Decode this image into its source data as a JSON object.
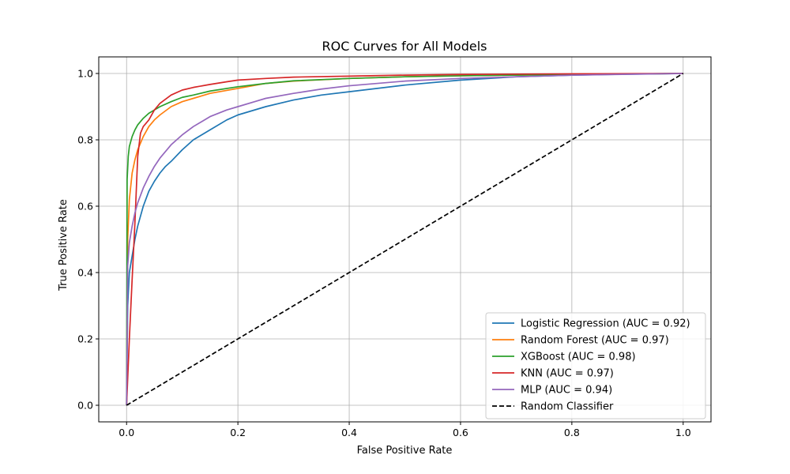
{
  "chart_data": {
    "type": "line",
    "title": "ROC Curves for All Models",
    "xlabel": "False Positive Rate",
    "ylabel": "True Positive Rate",
    "xlim": [
      -0.05,
      1.05
    ],
    "ylim": [
      -0.05,
      1.05
    ],
    "xticks": [
      "0.0",
      "0.2",
      "0.4",
      "0.6",
      "0.8",
      "1.0"
    ],
    "yticks": [
      "0.0",
      "0.2",
      "0.4",
      "0.6",
      "0.8",
      "1.0"
    ],
    "grid": true,
    "legend_position": "lower-right",
    "series": [
      {
        "name": "Logistic Regression (AUC = 0.92)",
        "color": "#1f77b4",
        "dash": "solid",
        "x": [
          0,
          0.002,
          0.005,
          0.01,
          0.015,
          0.02,
          0.03,
          0.04,
          0.05,
          0.06,
          0.07,
          0.08,
          0.1,
          0.12,
          0.15,
          0.18,
          0.2,
          0.25,
          0.3,
          0.35,
          0.4,
          0.5,
          0.6,
          0.7,
          0.8,
          0.9,
          1.0
        ],
        "y": [
          0,
          0.3,
          0.4,
          0.45,
          0.5,
          0.54,
          0.6,
          0.645,
          0.675,
          0.7,
          0.72,
          0.735,
          0.77,
          0.8,
          0.83,
          0.86,
          0.875,
          0.9,
          0.92,
          0.935,
          0.945,
          0.965,
          0.98,
          0.99,
          0.995,
          0.998,
          1.0
        ]
      },
      {
        "name": "Random Forest (AUC = 0.97)",
        "color": "#ff7f0e",
        "dash": "solid",
        "x": [
          0,
          0.002,
          0.005,
          0.01,
          0.015,
          0.02,
          0.03,
          0.04,
          0.05,
          0.06,
          0.08,
          0.1,
          0.12,
          0.15,
          0.2,
          0.25,
          0.3,
          0.4,
          0.5,
          0.6,
          0.8,
          1.0
        ],
        "y": [
          0,
          0.5,
          0.62,
          0.7,
          0.74,
          0.77,
          0.81,
          0.84,
          0.86,
          0.875,
          0.9,
          0.915,
          0.925,
          0.94,
          0.955,
          0.97,
          0.977,
          0.985,
          0.99,
          0.993,
          0.997,
          1.0
        ]
      },
      {
        "name": "XGBoost (AUC = 0.98)",
        "color": "#2ca02c",
        "dash": "solid",
        "x": [
          0,
          0.001,
          0.003,
          0.005,
          0.01,
          0.015,
          0.02,
          0.03,
          0.04,
          0.05,
          0.06,
          0.08,
          0.1,
          0.12,
          0.15,
          0.2,
          0.25,
          0.3,
          0.4,
          0.5,
          0.6,
          0.8,
          1.0
        ],
        "y": [
          0,
          0.68,
          0.75,
          0.78,
          0.81,
          0.83,
          0.845,
          0.865,
          0.88,
          0.89,
          0.9,
          0.915,
          0.928,
          0.935,
          0.947,
          0.96,
          0.97,
          0.978,
          0.985,
          0.99,
          0.993,
          0.997,
          1.0
        ]
      },
      {
        "name": "KNN (AUC = 0.97)",
        "color": "#d62728",
        "dash": "solid",
        "x": [
          0,
          0.005,
          0.01,
          0.015,
          0.02,
          0.025,
          0.03,
          0.04,
          0.05,
          0.06,
          0.08,
          0.1,
          0.12,
          0.15,
          0.18,
          0.2,
          0.25,
          0.3,
          0.4,
          0.5,
          0.6,
          0.8,
          1.0
        ],
        "y": [
          0,
          0.2,
          0.38,
          0.55,
          0.75,
          0.82,
          0.84,
          0.86,
          0.89,
          0.91,
          0.935,
          0.95,
          0.958,
          0.967,
          0.975,
          0.98,
          0.985,
          0.989,
          0.992,
          0.995,
          0.997,
          0.999,
          1.0
        ]
      },
      {
        "name": "MLP (AUC = 0.94)",
        "color": "#9467bd",
        "dash": "solid",
        "x": [
          0,
          0.002,
          0.005,
          0.01,
          0.015,
          0.02,
          0.03,
          0.04,
          0.05,
          0.06,
          0.07,
          0.08,
          0.1,
          0.12,
          0.15,
          0.18,
          0.2,
          0.25,
          0.3,
          0.35,
          0.4,
          0.5,
          0.6,
          0.8,
          1.0
        ],
        "y": [
          0,
          0.42,
          0.49,
          0.54,
          0.58,
          0.61,
          0.655,
          0.69,
          0.72,
          0.745,
          0.765,
          0.785,
          0.815,
          0.84,
          0.87,
          0.89,
          0.9,
          0.925,
          0.94,
          0.953,
          0.963,
          0.977,
          0.985,
          0.995,
          1.0
        ]
      },
      {
        "name": "Random Classifier",
        "color": "#000000",
        "dash": "dashed",
        "x": [
          0,
          1
        ],
        "y": [
          0,
          1
        ]
      }
    ]
  }
}
